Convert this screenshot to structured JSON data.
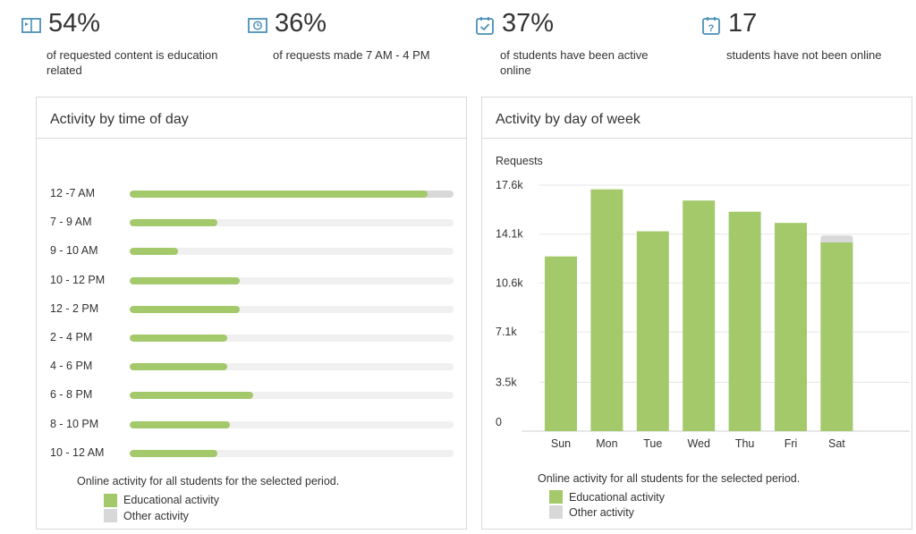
{
  "colors": {
    "educational": "#a3c96b",
    "other": "#d8d8d8",
    "track": "#f0f0f0",
    "icon": "#4a90b8"
  },
  "stats": [
    {
      "value": "54%",
      "label": "of requested content is education related",
      "icon": "book-icon"
    },
    {
      "value": "36%",
      "label": "of requests made 7 AM - 4 PM",
      "icon": "clock-book-icon"
    },
    {
      "value": "37%",
      "label": "of students have been active online",
      "icon": "calendar-check-icon"
    },
    {
      "value": "17",
      "label": "students have not been online",
      "icon": "calendar-question-icon"
    }
  ],
  "time_panel": {
    "title": "Activity by time of day",
    "caption": "Online activity for all students for the selected period.",
    "legend": [
      "Educational activity",
      "Other activity"
    ]
  },
  "day_panel": {
    "title": "Activity by day of week",
    "caption": "Online activity for all students for the selected period.",
    "legend": [
      "Educational activity",
      "Other activity"
    ]
  },
  "chart_data": [
    {
      "type": "bar",
      "orientation": "horizontal",
      "title": "Activity by time of day",
      "categories": [
        "12 -7 AM",
        "7 - 9 AM",
        "9 - 10 AM",
        "10 - 12 PM",
        "12 - 2 PM",
        "2 - 4 PM",
        "4 - 6 PM",
        "6 - 8 PM",
        "8 - 10 PM",
        "10 - 12 AM"
      ],
      "series": [
        {
          "name": "Educational activity",
          "values": [
            0.92,
            0.27,
            0.15,
            0.34,
            0.34,
            0.3,
            0.3,
            0.38,
            0.31,
            0.27
          ]
        },
        {
          "name": "Other activity",
          "values": [
            0.08,
            0,
            0,
            0,
            0,
            0,
            0,
            0,
            0,
            0
          ]
        }
      ],
      "stacked": true,
      "grid": false,
      "legend_position": "bottom"
    },
    {
      "type": "bar",
      "orientation": "vertical",
      "title": "Activity by day of week",
      "ylabel": "Requests",
      "categories": [
        "Sun",
        "Mon",
        "Tue",
        "Wed",
        "Thu",
        "Fri",
        "Sat"
      ],
      "series": [
        {
          "name": "Educational activity",
          "values": [
            12500,
            17300,
            14300,
            16500,
            15700,
            14900,
            13500
          ]
        },
        {
          "name": "Other activity",
          "values": [
            0,
            0,
            0,
            0,
            0,
            0,
            500
          ]
        }
      ],
      "stacked": true,
      "ylim": [
        0,
        17600
      ],
      "yticks": [
        0,
        3500,
        7100,
        10600,
        14100,
        17600
      ],
      "ytick_labels": [
        "0",
        "3.5k",
        "7.1k",
        "10.6k",
        "14.1k",
        "17.6k"
      ],
      "grid": true,
      "legend_position": "bottom"
    }
  ]
}
